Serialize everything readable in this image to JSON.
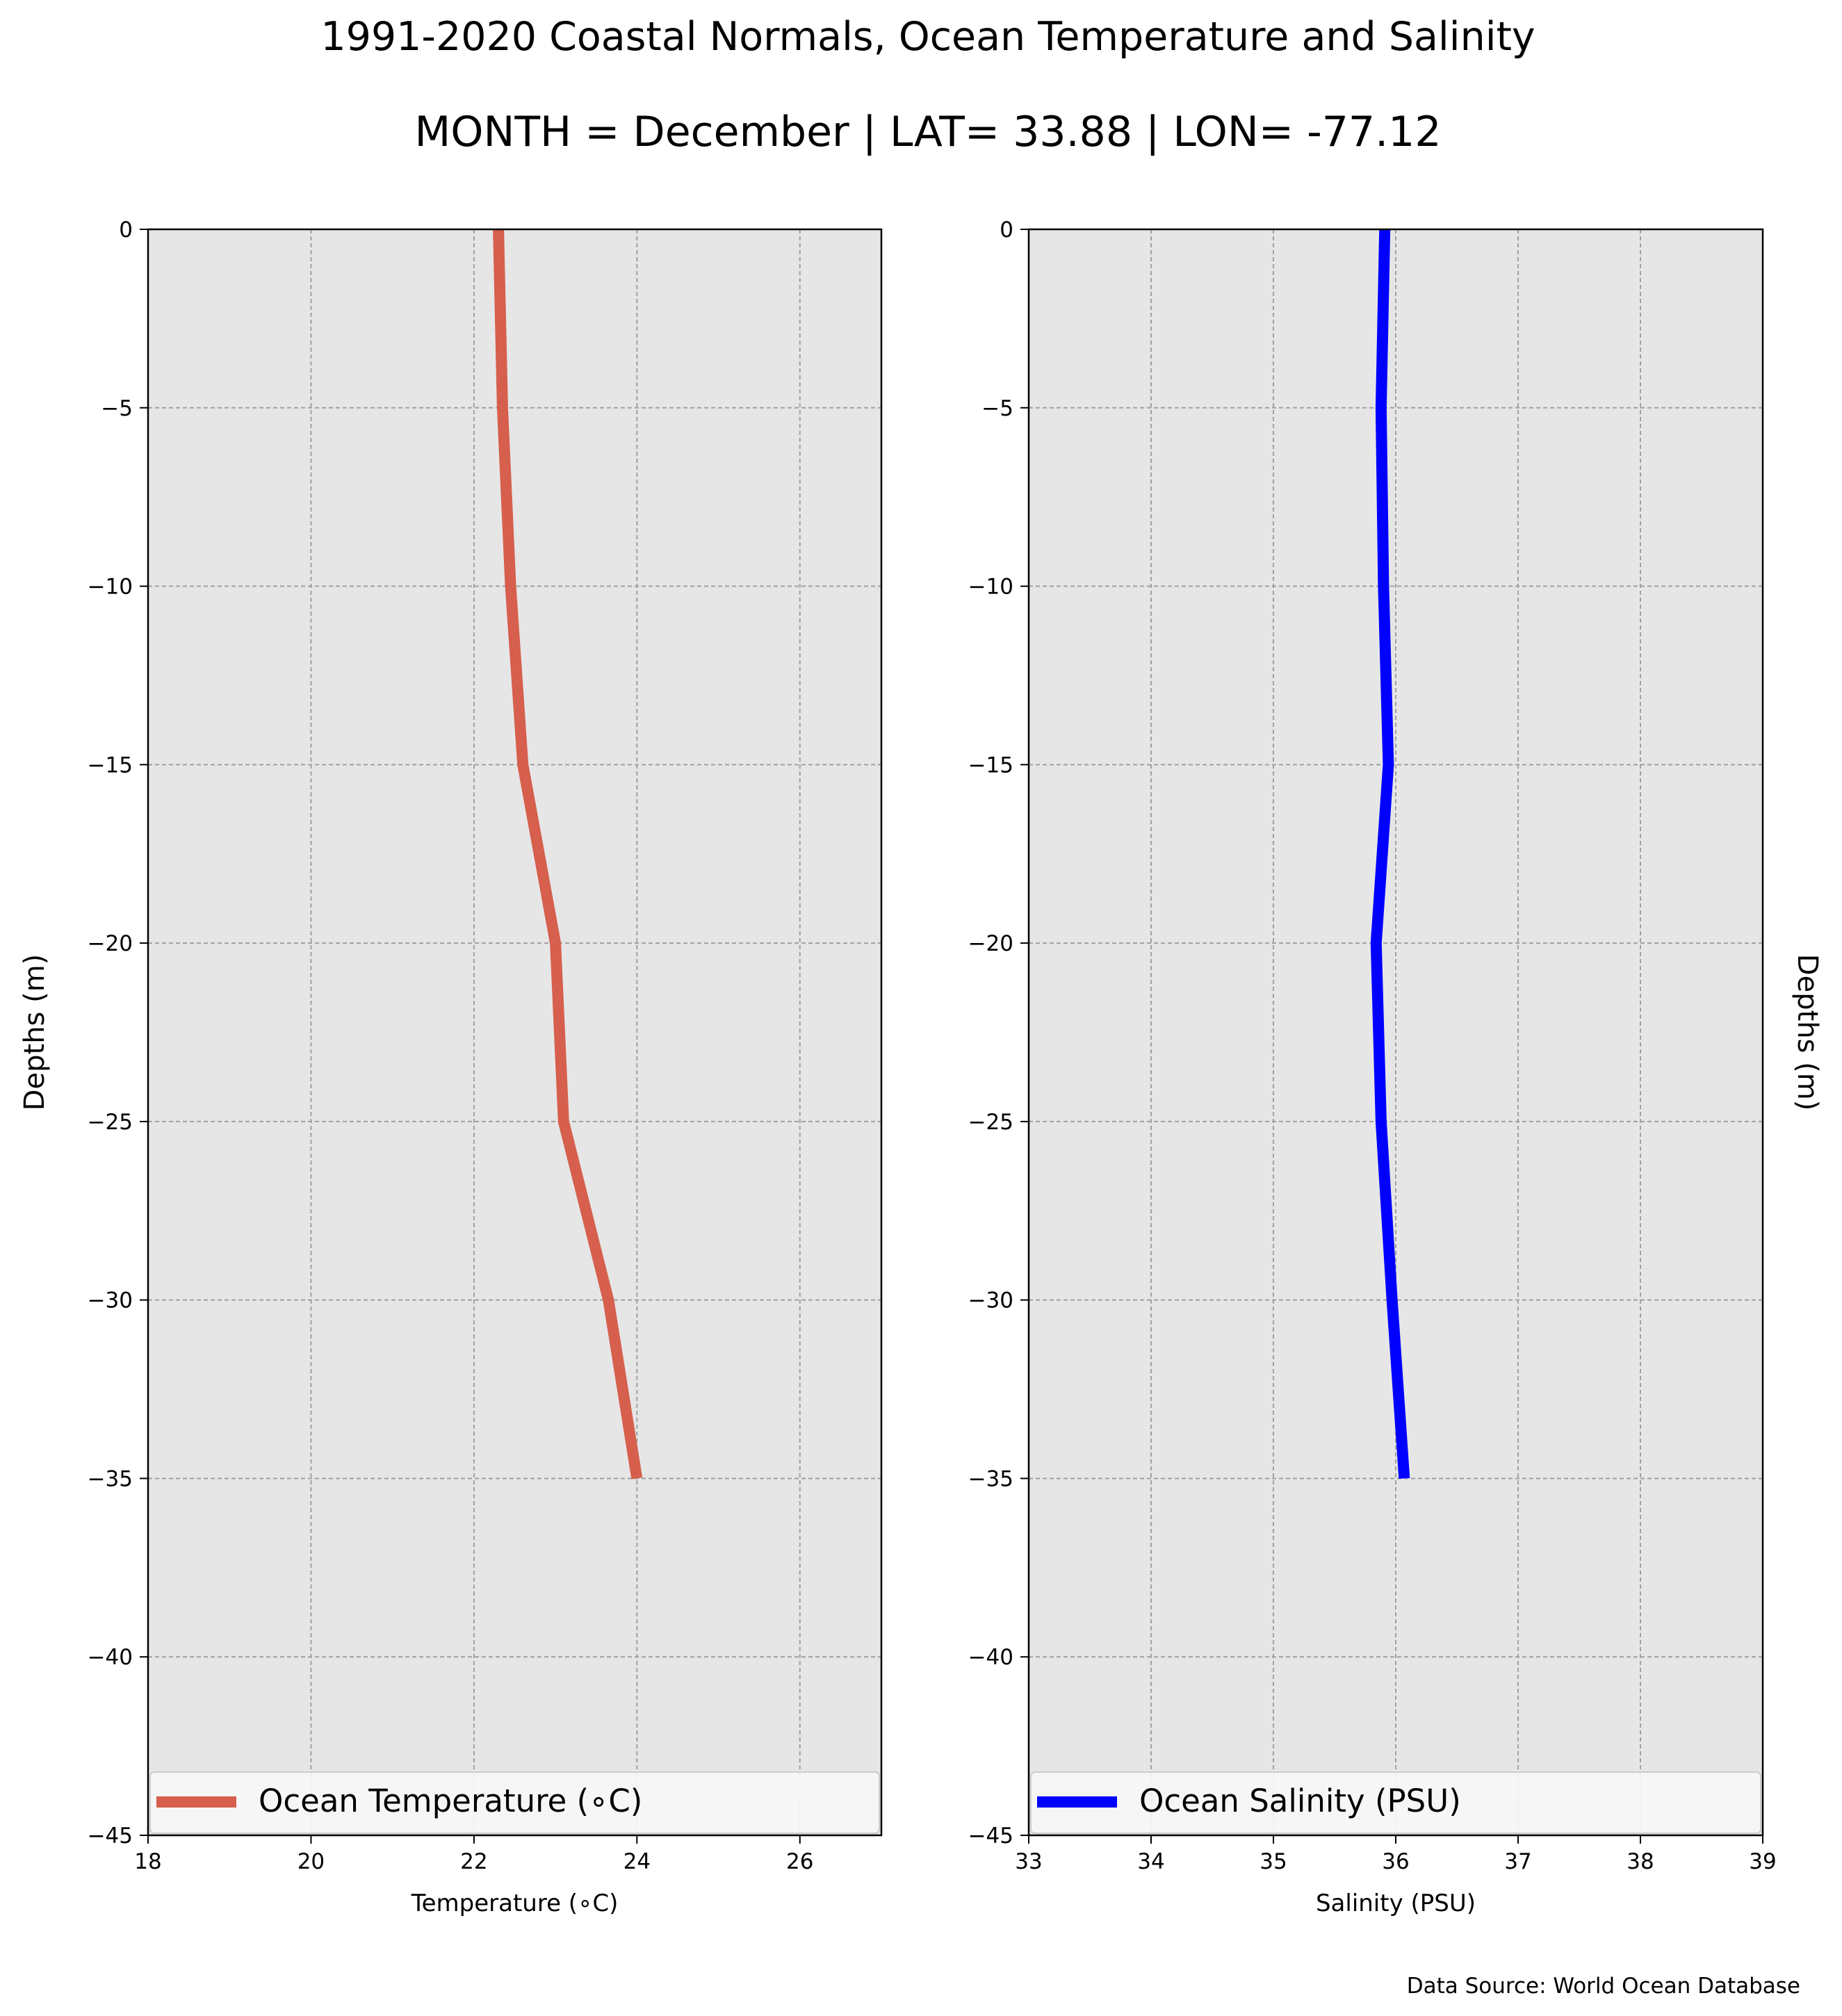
{
  "figure": {
    "title_line1": "1991-2020 Coastal Normals, Ocean Temperature and Salinity",
    "title_line2": "MONTH = December | LAT= 33.88 | LON= -77.12",
    "source": "Data Source: World Ocean Database",
    "colors": {
      "panel_bg": "#e6e6e6",
      "grid": "#a0a0a0",
      "temperature": "#d65f4d",
      "salinity": "#0000ff"
    }
  },
  "chart_data": [
    {
      "type": "line",
      "orientation": "vertical-profile",
      "xlabel": "Temperature ($^\\circ$C)",
      "xlabel_display": "Temperature (∘C)",
      "ylabel": "Depths (m)",
      "ylabel_side": "left",
      "xlim": [
        18,
        27
      ],
      "ylim": [
        -45,
        0
      ],
      "xticks": [
        "18",
        "20",
        "22",
        "24",
        "26"
      ],
      "xtick_values": [
        18,
        20,
        22,
        24,
        26
      ],
      "yticks": [
        "0",
        "−5",
        "−10",
        "−15",
        "−20",
        "−25",
        "−30",
        "−35",
        "−40",
        "−45"
      ],
      "ytick_values": [
        0,
        -5,
        -10,
        -15,
        -20,
        -25,
        -30,
        -35,
        -40,
        -45
      ],
      "grid": true,
      "legend_position": "bottom",
      "series": [
        {
          "name": "Ocean Temperature (∘C)",
          "color": "#d65f4d",
          "x": [
            22.3,
            22.35,
            22.45,
            22.6,
            23.0,
            23.1,
            23.65,
            24.0
          ],
          "y": [
            0,
            -5,
            -10,
            -15,
            -20,
            -25,
            -30,
            -35
          ]
        }
      ]
    },
    {
      "type": "line",
      "orientation": "vertical-profile",
      "xlabel": "Salinity (PSU)",
      "ylabel": "Depths (m)",
      "ylabel_side": "right",
      "xlim": [
        33,
        39
      ],
      "ylim": [
        -45,
        0
      ],
      "xticks": [
        "33",
        "34",
        "35",
        "36",
        "37",
        "38",
        "39"
      ],
      "xtick_values": [
        33,
        34,
        35,
        36,
        37,
        38,
        39
      ],
      "yticks": [
        "0",
        "−5",
        "−10",
        "−15",
        "−20",
        "−25",
        "−30",
        "−35",
        "−40",
        "−45"
      ],
      "ytick_values": [
        0,
        -5,
        -10,
        -15,
        -20,
        -25,
        -30,
        -35,
        -40,
        -45
      ],
      "grid": true,
      "legend_position": "bottom",
      "series": [
        {
          "name": "Ocean Salinity (PSU)",
          "color": "#0000ff",
          "x": [
            35.91,
            35.88,
            35.9,
            35.94,
            35.84,
            35.88,
            35.97,
            36.07
          ],
          "y": [
            0,
            -5,
            -10,
            -15,
            -20,
            -25,
            -30,
            -35
          ]
        }
      ]
    }
  ]
}
